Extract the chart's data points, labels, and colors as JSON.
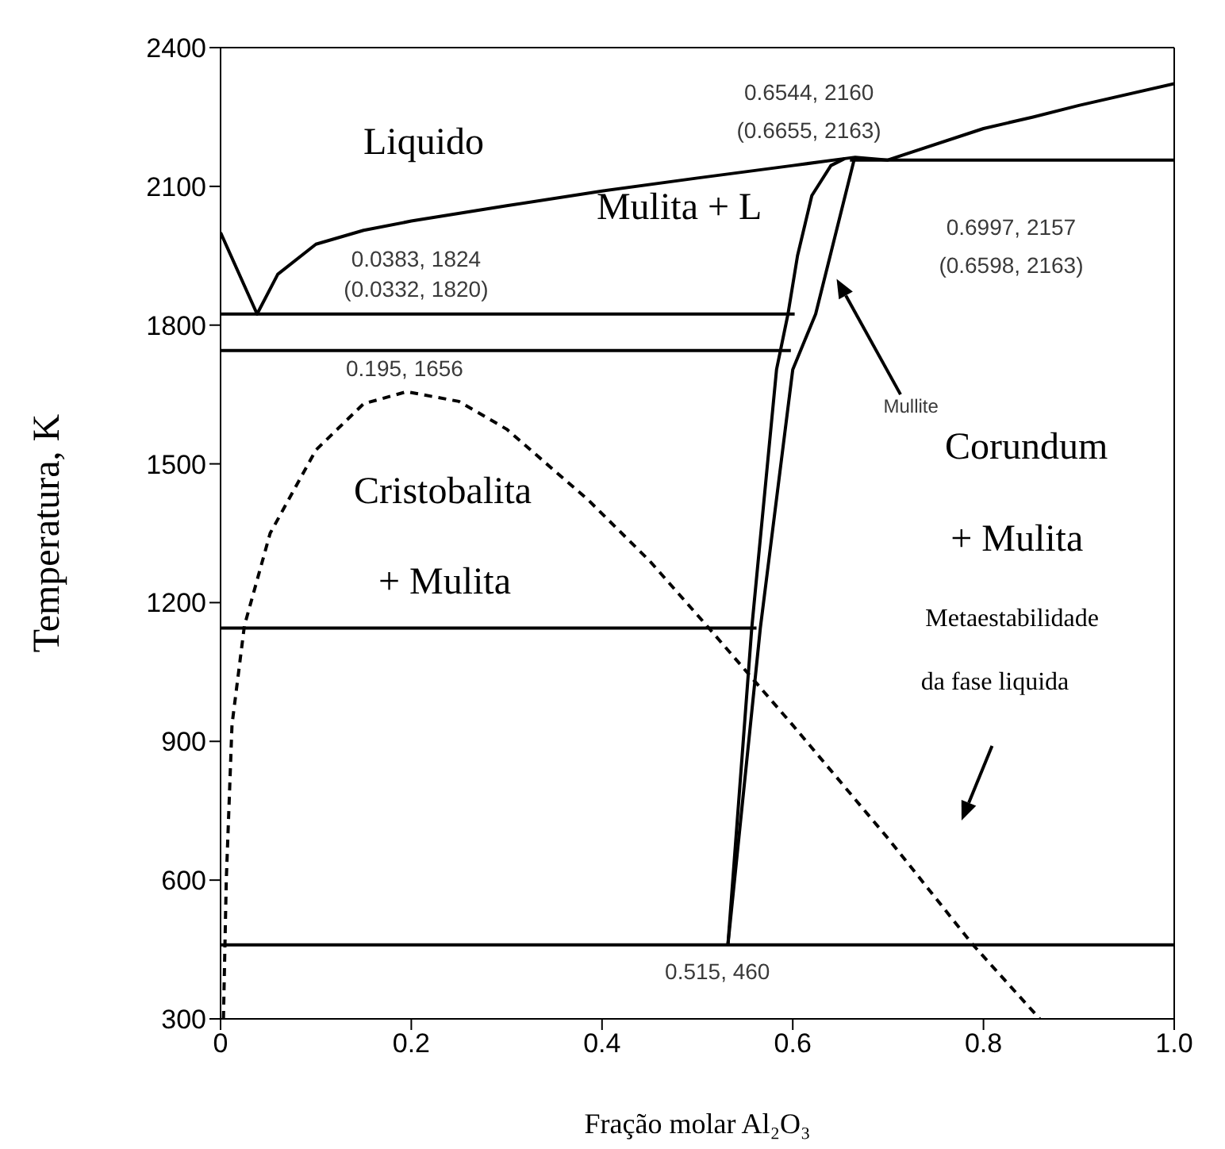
{
  "chart_data": {
    "type": "line",
    "xlabel": "Fração molar Al₂O₃",
    "ylabel": "Temperatura, K",
    "xlim": [
      0,
      1
    ],
    "xticks": [
      0,
      0.2,
      0.4,
      0.6,
      0.8,
      {
        "value": 1,
        "label": "1.0"
      }
    ],
    "ylim": [
      300,
      2400
    ],
    "yticks": [
      300,
      600,
      900,
      1200,
      1500,
      1800,
      2100,
      2400
    ],
    "marker": "none",
    "series": [
      {
        "color": "#000000",
        "line_style": "solid",
        "x": [
          0,
          0.0383,
          0.06,
          0.1,
          0.15,
          0.2,
          0.3,
          0.4,
          0.5,
          0.6,
          0.6544,
          0.6655,
          0.6997,
          0.8,
          0.852,
          0.9,
          1.0
        ],
        "values": [
          2000,
          1824,
          1910,
          1975,
          2005,
          2025,
          2058,
          2090,
          2118,
          2145,
          2160,
          2163,
          2157,
          2225,
          2250,
          2275,
          2322
        ]
      },
      {
        "color": "#000000",
        "line_style": "solid",
        "x": [
          0,
          0.602
        ],
        "values": [
          1824,
          1824
        ]
      },
      {
        "color": "#000000",
        "line_style": "solid",
        "x": [
          0,
          0.598
        ],
        "values": [
          1745,
          1745
        ]
      },
      {
        "color": "#000000",
        "line_style": "solid",
        "x": [
          0,
          0.562
        ],
        "values": [
          1145,
          1145
        ]
      },
      {
        "color": "#000000",
        "line_style": "solid",
        "x": [
          0,
          1
        ],
        "values": [
          460,
          460
        ]
      },
      {
        "color": "#000000",
        "line_style": "solid",
        "x": [
          0.66,
          1
        ],
        "values": [
          2157,
          2157
        ]
      },
      {
        "color": "#000000",
        "line_style": "solid",
        "x": [
          0.532,
          0.557,
          0.583,
          0.595,
          0.605,
          0.62,
          0.64,
          0.6544
        ],
        "values": [
          460,
          1145,
          1704,
          1824,
          1950,
          2080,
          2145,
          2160
        ]
      },
      {
        "color": "#000000",
        "line_style": "solid",
        "x": [
          0.532,
          0.566,
          0.6,
          0.624,
          0.665
        ],
        "values": [
          460,
          1145,
          1704,
          1824,
          2163
        ]
      },
      {
        "color": "#000000",
        "line_style": "dashed",
        "x": [
          0.003,
          0.006,
          0.012,
          0.025,
          0.052,
          0.1,
          0.15,
          0.195,
          0.25,
          0.3,
          0.385,
          0.45,
          0.512,
          0.6,
          0.7,
          0.789,
          0.859
        ],
        "values": [
          300,
          600,
          936,
          1150,
          1350,
          1530,
          1630,
          1656,
          1635,
          1575,
          1423,
          1290,
          1145,
          935,
          690,
          460,
          300
        ]
      }
    ],
    "annotations": [
      "Liquido",
      "0.6544, 2160",
      "(0.6655, 2163)",
      "Mulita + L",
      "0.6997, 2157",
      "(0.6598, 2163)",
      "0.0383, 1824",
      "(0.0332, 1820)",
      "0.195, 1656",
      "Mullite",
      "Corundum",
      "+ Mulita",
      "Cristobalita",
      "+ Mulita",
      "Metaestabilidade",
      "da fase liquida",
      "0.515, 460"
    ]
  }
}
